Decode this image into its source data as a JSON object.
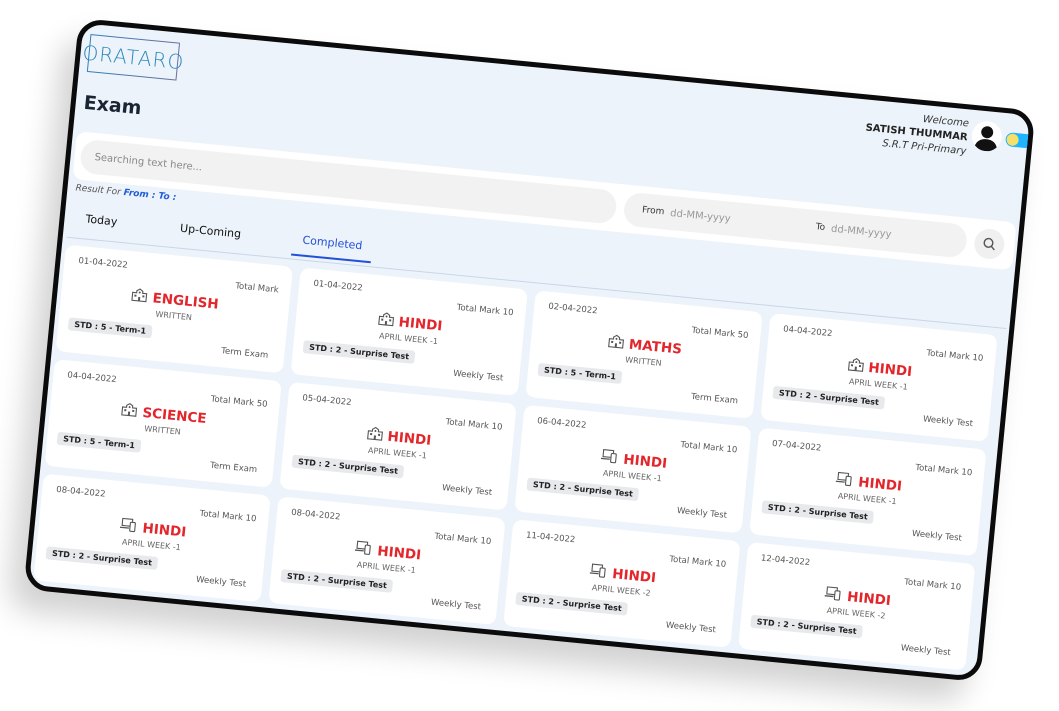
{
  "logo": {
    "text": "ORATARO"
  },
  "header": {
    "title": "Exam"
  },
  "user": {
    "welcome": "Welcome",
    "name": "SATISH THUMMAR",
    "school": "S.R.T Pri-Primary"
  },
  "search": {
    "placeholder": "Searching text here..."
  },
  "date_range": {
    "from_label": "From",
    "from_placeholder": "dd-MM-yyyy",
    "to_label": "To",
    "to_placeholder": "dd-MM-yyyy"
  },
  "result": {
    "prefix": "Result For",
    "range": "From : To :"
  },
  "tabs": [
    {
      "label": "Today"
    },
    {
      "label": "Up-Coming"
    },
    {
      "label": "Completed",
      "active": true
    }
  ],
  "colors": {
    "subject": "#e3262b",
    "accent": "#2350d8",
    "background": "#edf3fb"
  },
  "cards": [
    {
      "date": "01-04-2022",
      "total": "Total Mark",
      "subject": "ENGLISH",
      "sub": "WRITTEN",
      "badge": "STD : 5 - Term-1",
      "type": "Term Exam",
      "icon": "school-icon"
    },
    {
      "date": "01-04-2022",
      "total": "Total Mark 10",
      "subject": "HINDI",
      "sub": "APRIL WEEK -1",
      "badge": "STD : 2 - Surprise Test",
      "type": "Weekly Test",
      "icon": "school-icon"
    },
    {
      "date": "02-04-2022",
      "total": "Total Mark 50",
      "subject": "MATHS",
      "sub": "WRITTEN",
      "badge": "STD : 5 - Term-1",
      "type": "Term Exam",
      "icon": "school-icon"
    },
    {
      "date": "04-04-2022",
      "total": "Total Mark 10",
      "subject": "HINDI",
      "sub": "APRIL WEEK -1",
      "badge": "STD : 2 - Surprise Test",
      "type": "Weekly Test",
      "icon": "school-icon"
    },
    {
      "date": "04-04-2022",
      "total": "Total Mark 50",
      "subject": "SCIENCE",
      "sub": "WRITTEN",
      "badge": "STD : 5 - Term-1",
      "type": "Term Exam",
      "icon": "school-icon"
    },
    {
      "date": "05-04-2022",
      "total": "Total Mark 10",
      "subject": "HINDI",
      "sub": "APRIL WEEK -1",
      "badge": "STD : 2 - Surprise Test",
      "type": "Weekly Test",
      "icon": "school-icon"
    },
    {
      "date": "06-04-2022",
      "total": "Total Mark 10",
      "subject": "HINDI",
      "sub": "APRIL WEEK -1",
      "badge": "STD : 2 - Surprise Test",
      "type": "Weekly Test",
      "icon": "devices-icon"
    },
    {
      "date": "07-04-2022",
      "total": "Total Mark 10",
      "subject": "HINDI",
      "sub": "APRIL WEEK -1",
      "badge": "STD : 2 - Surprise Test",
      "type": "Weekly Test",
      "icon": "devices-icon"
    },
    {
      "date": "08-04-2022",
      "total": "Total Mark 10",
      "subject": "HINDI",
      "sub": "APRIL WEEK -1",
      "badge": "STD : 2 - Surprise Test",
      "type": "Weekly Test",
      "icon": "devices-icon"
    },
    {
      "date": "08-04-2022",
      "total": "Total Mark 10",
      "subject": "HINDI",
      "sub": "APRIL WEEK -1",
      "badge": "STD : 2 - Surprise Test",
      "type": "Weekly Test",
      "icon": "devices-icon"
    },
    {
      "date": "11-04-2022",
      "total": "Total Mark 10",
      "subject": "HINDI",
      "sub": "APRIL WEEK -2",
      "badge": "STD : 2 - Surprise Test",
      "type": "Weekly Test",
      "icon": "devices-icon"
    },
    {
      "date": "12-04-2022",
      "total": "Total Mark 10",
      "subject": "HINDI",
      "sub": "APRIL WEEK -2",
      "badge": "STD : 2 - Surprise Test",
      "type": "Weekly Test",
      "icon": "devices-icon"
    }
  ]
}
